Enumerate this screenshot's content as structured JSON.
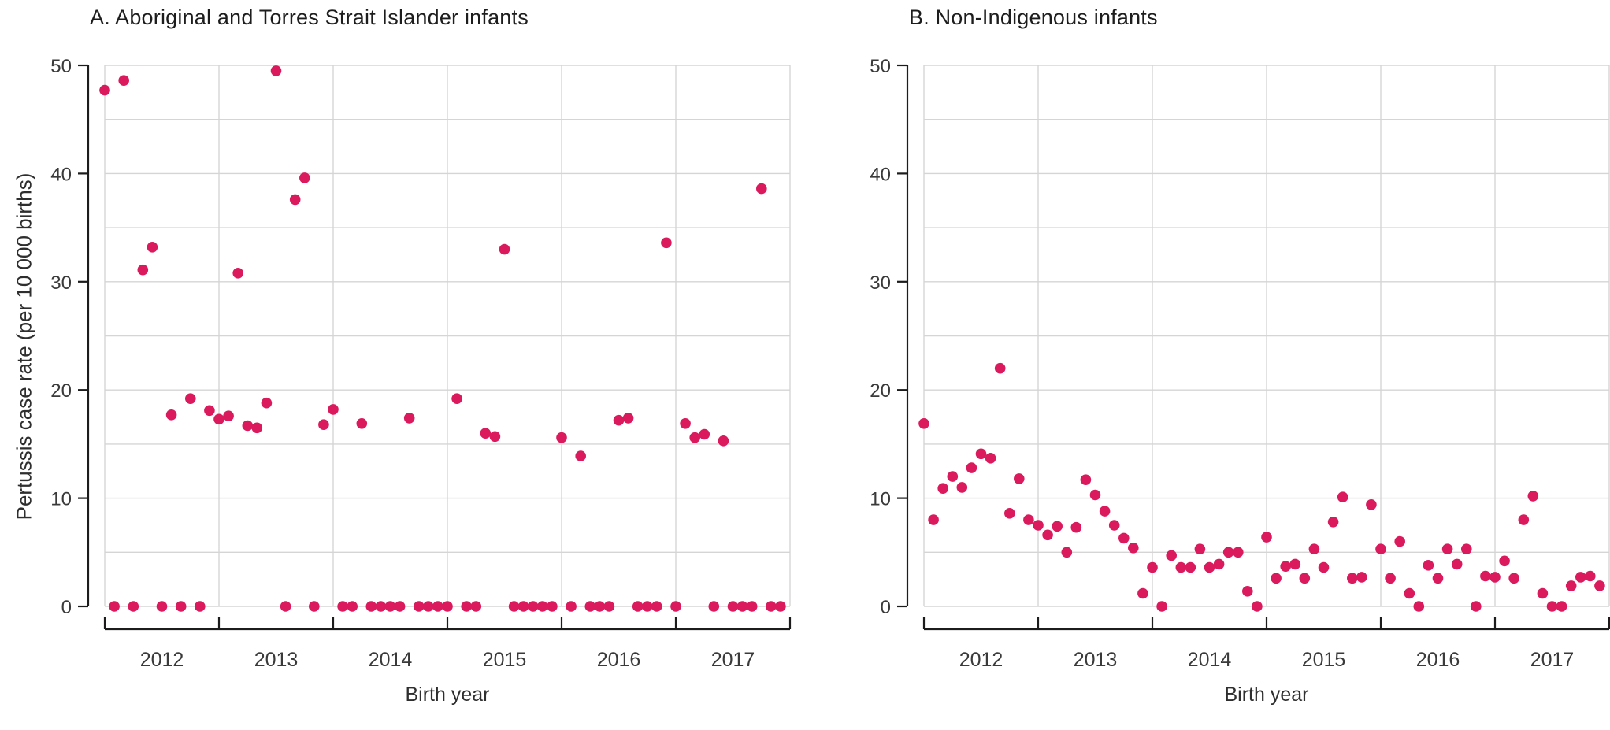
{
  "figure": {
    "xlabel": "Birth year",
    "ylabel": "Pertussis case rate (per 10 000 births)"
  },
  "style": {
    "point_color": "#db1a5e",
    "grid_color": "#d5d5d5",
    "axis_color": "#1c1c1c",
    "tick_label_color": "#3a3a3a",
    "title_color": "#1d1d1d"
  },
  "chart_data": [
    {
      "type": "scatter",
      "panel": "A",
      "title": "A. Aboriginal and Torres Strait Islander infants",
      "xlabel": "Birth year",
      "ylabel": "Pertussis case rate (per 10 000 births)",
      "x_unit": "monthly birth cohort",
      "x_start": "2012-01",
      "x_end": "2017-12",
      "xticks": [
        "2012",
        "2013",
        "2014",
        "2015",
        "2016",
        "2017"
      ],
      "yticks": [
        0,
        10,
        20,
        30,
        40,
        50
      ],
      "ylim": [
        0,
        50
      ],
      "grid": true,
      "gridline_step": 5,
      "legend": "none",
      "monthly_values": [
        47.7,
        0,
        48.6,
        0,
        31.1,
        33.2,
        0,
        17.7,
        0,
        19.2,
        0,
        18.1,
        17.3,
        17.6,
        30.8,
        16.7,
        16.5,
        18.8,
        49.5,
        0,
        37.6,
        39.6,
        0,
        16.8,
        18.2,
        0,
        0,
        16.9,
        0,
        0,
        0,
        0,
        17.4,
        0,
        0,
        0,
        0,
        19.2,
        0,
        0,
        16.0,
        15.7,
        33.0,
        0,
        0,
        0,
        0,
        0,
        15.6,
        0,
        13.9,
        0,
        0,
        0,
        17.2,
        17.4,
        0,
        0,
        0,
        33.6,
        0,
        16.9,
        15.6,
        15.9,
        0,
        15.3,
        0,
        0,
        0,
        38.6,
        0,
        0
      ]
    },
    {
      "type": "scatter",
      "panel": "B",
      "title": "B. Non-Indigenous infants",
      "xlabel": "Birth year",
      "ylabel": "Pertussis case rate (per 10 000 births)",
      "x_unit": "monthly birth cohort",
      "x_start": "2012-01",
      "x_end": "2017-12",
      "xticks": [
        "2012",
        "2013",
        "2014",
        "2015",
        "2016",
        "2017"
      ],
      "yticks": [
        0,
        10,
        20,
        30,
        40,
        50
      ],
      "ylim": [
        0,
        50
      ],
      "grid": true,
      "gridline_step": 5,
      "legend": "none",
      "monthly_values": [
        16.9,
        8.0,
        10.9,
        12.0,
        11.0,
        12.8,
        14.1,
        13.7,
        22.0,
        8.6,
        11.8,
        8.0,
        7.5,
        6.6,
        7.4,
        5.0,
        7.3,
        11.7,
        10.3,
        8.8,
        7.5,
        6.3,
        5.4,
        1.2,
        3.6,
        0,
        4.7,
        3.6,
        3.6,
        5.3,
        3.6,
        3.9,
        5.0,
        5.0,
        1.4,
        0,
        6.4,
        2.6,
        3.7,
        3.9,
        2.6,
        5.3,
        3.6,
        7.8,
        10.1,
        2.6,
        2.7,
        9.4,
        5.3,
        2.6,
        6.0,
        1.2,
        0,
        3.8,
        2.6,
        5.3,
        3.9,
        5.3,
        0,
        2.8,
        2.7,
        4.2,
        2.6,
        8.0,
        10.2,
        1.2,
        0,
        0,
        1.9,
        2.7,
        2.8,
        1.9
      ]
    }
  ]
}
